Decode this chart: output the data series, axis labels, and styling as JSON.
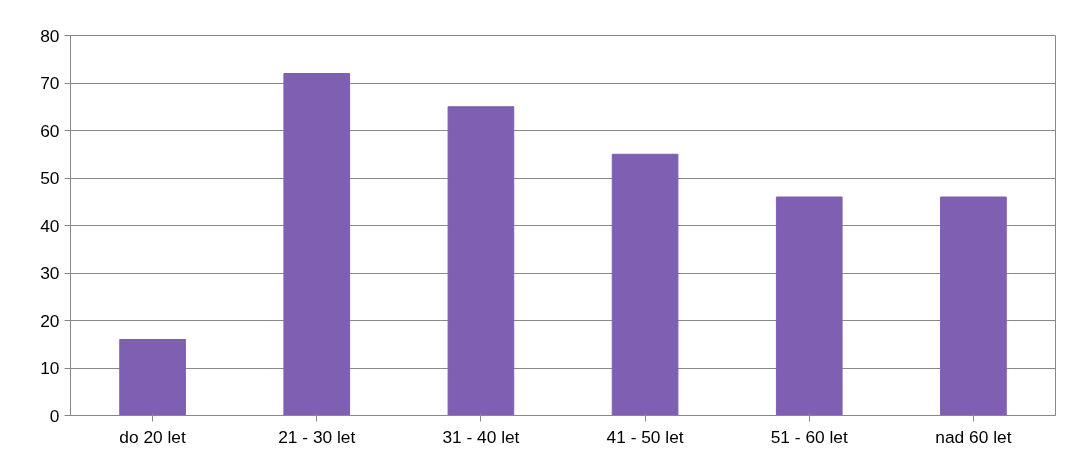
{
  "chart_data": {
    "type": "bar",
    "categories": [
      "do 20 let",
      "21 - 30 let",
      "31 - 40 let",
      "41 - 50 let",
      "51 - 60 let",
      "nad 60 let"
    ],
    "values": [
      16,
      72,
      65,
      55,
      46,
      46
    ],
    "color": "#7e5fb2",
    "ylim": [
      0,
      80
    ],
    "yticks": [
      0,
      10,
      20,
      30,
      40,
      50,
      60,
      70,
      80
    ],
    "grid": "y"
  }
}
